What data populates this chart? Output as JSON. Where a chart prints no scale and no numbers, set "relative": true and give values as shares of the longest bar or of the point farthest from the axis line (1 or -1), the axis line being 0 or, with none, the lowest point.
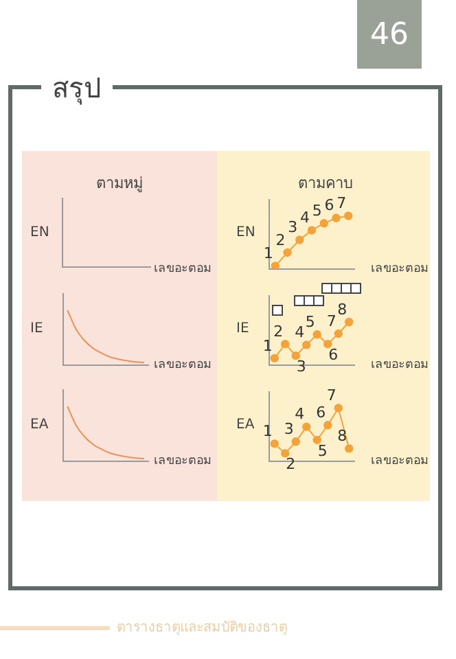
{
  "chart_data": [
    {
      "type": "other",
      "title": "ตามหมู่",
      "ylabel": "EN",
      "xlabel": "เลขอะตอม",
      "annotations": [
        "46",
        "สรุป",
        "ตารางธาตุและสมบัติของธาตุ"
      ]
    },
    {
      "type": "line",
      "title": "ตามคาบ",
      "ylabel": "EN",
      "xlabel": "เลขอะตอม",
      "relative": true,
      "categories": [
        null,
        null,
        null,
        null,
        null,
        null,
        null
      ],
      "values": [
        0.06,
        0.31,
        0.55,
        0.73,
        0.86,
        0.96,
        1
      ],
      "color": "#f3a23c",
      "marker": "circle",
      "annotations": [
        {
          "text": "1",
          "y": 0.06
        },
        {
          "text": "2",
          "y": 0.31
        },
        {
          "text": "3",
          "y": 0.55
        },
        {
          "text": "4",
          "y": 0.73
        },
        {
          "text": "5",
          "y": 0.86
        },
        {
          "text": "6",
          "y": 0.96
        },
        {
          "text": "7",
          "y": 1
        }
      ]
    },
    {
      "type": "line",
      "ylabel": "IE",
      "xlabel": "เลขอะตอม",
      "relative": true,
      "categories": [
        null,
        null,
        null,
        null,
        null,
        null,
        null,
        null,
        null,
        null
      ],
      "values": [
        1,
        0.66,
        0.45,
        0.31,
        0.22,
        0.15,
        0.11,
        0.08,
        0.06,
        0.05
      ],
      "color": "#e8925c",
      "marker": "none"
    },
    {
      "type": "line",
      "ylabel": "IE",
      "xlabel": "เลขอะตอม",
      "relative": true,
      "categories": [
        null,
        null,
        null,
        null,
        null,
        null,
        null,
        null
      ],
      "values": [
        0.16,
        0.49,
        0.22,
        0.47,
        0.71,
        0.49,
        0.73,
        1
      ],
      "color": "#f3a23c",
      "marker": "circle",
      "annotations": [
        {
          "text": "1",
          "y": 0.16
        },
        {
          "text": "2",
          "y": 0.49
        },
        {
          "text": "3",
          "y": 0.22
        },
        {
          "text": "4",
          "y": 0.47
        },
        {
          "text": "5",
          "y": 0.71
        },
        {
          "text": "6",
          "y": 0.49
        },
        {
          "text": "7",
          "y": 0.73
        },
        {
          "text": "8",
          "y": 1
        }
      ]
    },
    {
      "type": "line",
      "ylabel": "EA",
      "xlabel": "เลขอะตอม",
      "relative": true,
      "categories": [
        null,
        null,
        null,
        null,
        null,
        null,
        null,
        null,
        null,
        null
      ],
      "values": [
        1,
        0.66,
        0.45,
        0.31,
        0.22,
        0.15,
        0.11,
        0.08,
        0.06,
        0.05
      ],
      "color": "#e8925c",
      "marker": "none"
    },
    {
      "type": "line",
      "ylabel": "EA",
      "xlabel": "เลขอะตอม",
      "relative": true,
      "categories": [
        null,
        null,
        null,
        null,
        null,
        null,
        null,
        null
      ],
      "values": [
        0.33,
        0.15,
        0.37,
        0.65,
        0.4,
        0.68,
        1,
        0.24
      ],
      "color": "#f3a23c",
      "marker": "circle",
      "annotations": [
        {
          "text": "1",
          "y": 0.33
        },
        {
          "text": "2",
          "y": 0.15
        },
        {
          "text": "3",
          "y": 0.37
        },
        {
          "text": "4",
          "y": 0.65
        },
        {
          "text": "5",
          "y": 0.4
        },
        {
          "text": "6",
          "y": 0.68
        },
        {
          "text": "7",
          "y": 1
        },
        {
          "text": "8",
          "y": 0.24
        }
      ]
    }
  ]
}
